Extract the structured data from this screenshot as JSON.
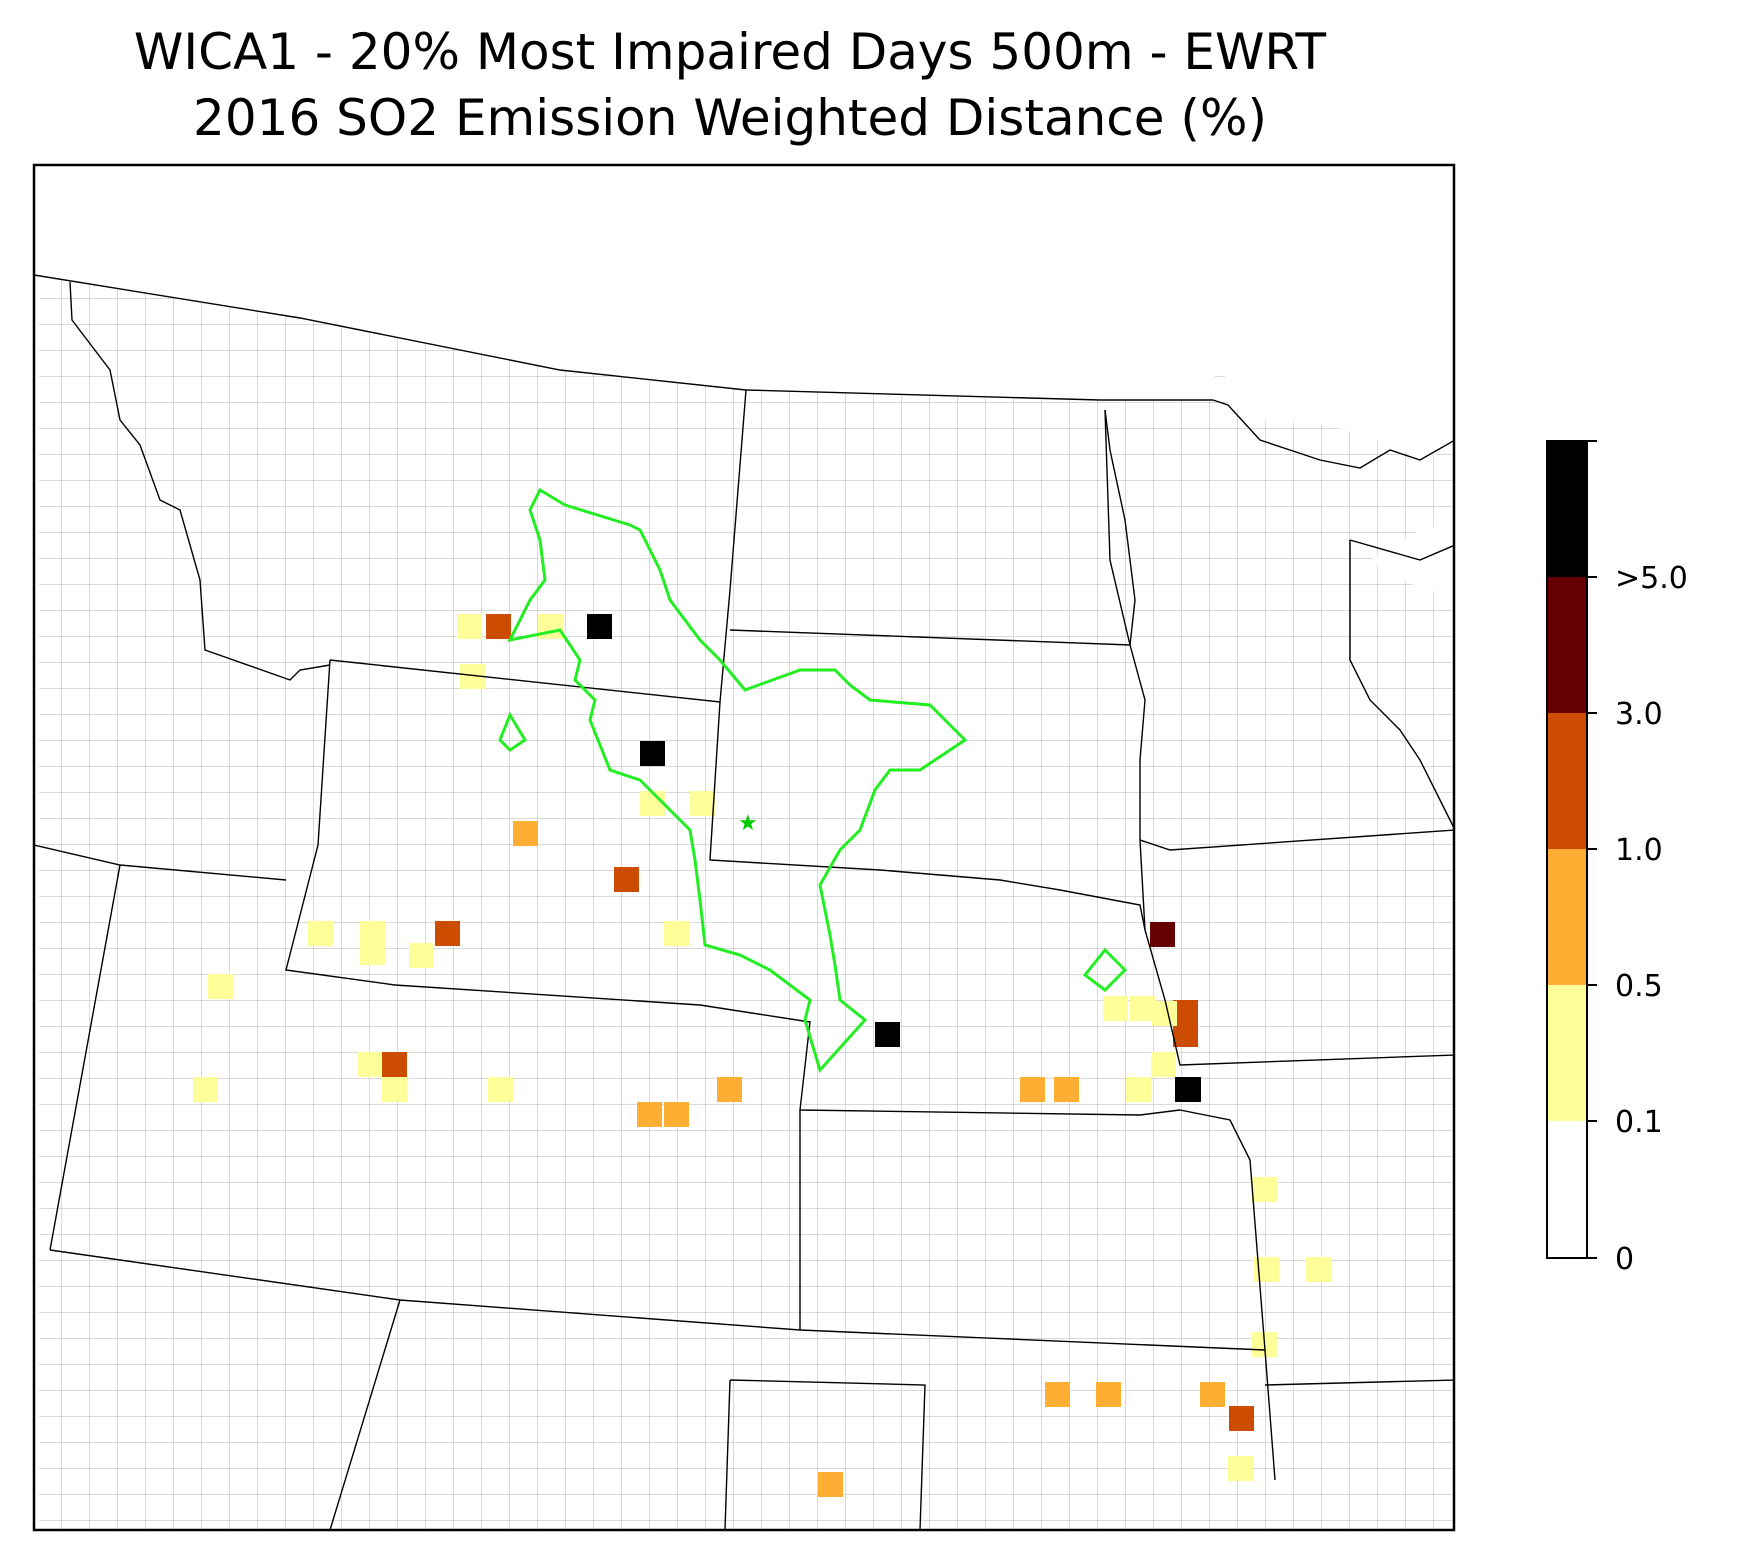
{
  "title": {
    "line1": "WICA1 - 20% Most Impaired Days 500m - EWRT",
    "line2": "2016 SO2 Emission Weighted Distance (%)"
  },
  "map": {
    "boundary_color": "#000000",
    "county_color": "#9a9a9a",
    "contour_color": "#00ee00",
    "site_marker": "star-icon"
  },
  "colorbar": {
    "bins": [
      {
        "from": "0",
        "to": "0.1",
        "color": "#ffffff"
      },
      {
        "from": "0.1",
        "to": "0.5",
        "color": "#ffff99"
      },
      {
        "from": "0.5",
        "to": "1.0",
        "color": "#fdae33"
      },
      {
        "from": "1.0",
        "to": "3.0",
        "color": "#cc4c02"
      },
      {
        "from": "3.0",
        "to": ">5.0",
        "color": "#660000"
      },
      {
        "from": ">5.0",
        "to": "",
        "color": "#000000"
      }
    ],
    "tick_labels": [
      "0",
      "0.1",
      "0.5",
      "1.0",
      "3.0",
      ">5.0"
    ]
  },
  "cells": [
    {
      "bin": 1,
      "c": "yellow"
    },
    {
      "bin": 3,
      "c": "red"
    },
    {
      "bin": 1,
      "c": "yellow"
    },
    {
      "bin": 5,
      "c": "black"
    },
    {
      "bin": 1,
      "c": "yellow"
    },
    {
      "bin": 5,
      "c": "black"
    },
    {
      "bin": 1,
      "c": "yellow"
    },
    {
      "bin": 1,
      "c": "yellow"
    },
    {
      "bin": 2,
      "c": "orange"
    },
    {
      "bin": 3,
      "c": "red"
    },
    {
      "bin": 1,
      "c": "yellow"
    },
    {
      "bin": 1,
      "c": "yellow"
    },
    {
      "bin": 3,
      "c": "red"
    },
    {
      "bin": 1,
      "c": "yellow"
    },
    {
      "bin": 1,
      "c": "yellow"
    },
    {
      "bin": 1,
      "c": "yellow"
    },
    {
      "bin": 3,
      "c": "red"
    },
    {
      "bin": 1,
      "c": "yellow"
    },
    {
      "bin": 1,
      "c": "yellow"
    },
    {
      "bin": 2,
      "c": "orange"
    },
    {
      "bin": 1,
      "c": "yellow"
    },
    {
      "bin": 1,
      "c": "yellow"
    },
    {
      "bin": 2,
      "c": "orange"
    },
    {
      "bin": 2,
      "c": "orange"
    },
    {
      "bin": 1,
      "c": "yellow"
    },
    {
      "bin": 5,
      "c": "black"
    },
    {
      "bin": 1,
      "c": "yellow"
    },
    {
      "bin": 3,
      "c": "red"
    },
    {
      "bin": 2,
      "c": "orange"
    },
    {
      "bin": 5,
      "c": "black"
    },
    {
      "bin": 2,
      "c": "orange"
    },
    {
      "bin": 1,
      "c": "yellow"
    },
    {
      "bin": 4,
      "c": "darkred"
    },
    {
      "bin": 1,
      "c": "yellow"
    },
    {
      "bin": 2,
      "c": "orange"
    },
    {
      "bin": 3,
      "c": "red"
    },
    {
      "bin": 1,
      "c": "yellow"
    },
    {
      "bin": 5,
      "c": "black"
    },
    {
      "bin": 1,
      "c": "yellow"
    },
    {
      "bin": 1,
      "c": "yellow"
    },
    {
      "bin": 1,
      "c": "yellow"
    },
    {
      "bin": 1,
      "c": "yellow"
    },
    {
      "bin": 1,
      "c": "yellow"
    },
    {
      "bin": 2,
      "c": "orange"
    },
    {
      "bin": 2,
      "c": "orange"
    },
    {
      "bin": 2,
      "c": "orange"
    },
    {
      "bin": 3,
      "c": "red"
    },
    {
      "bin": 1,
      "c": "yellow"
    },
    {
      "bin": 2,
      "c": "orange"
    }
  ]
}
